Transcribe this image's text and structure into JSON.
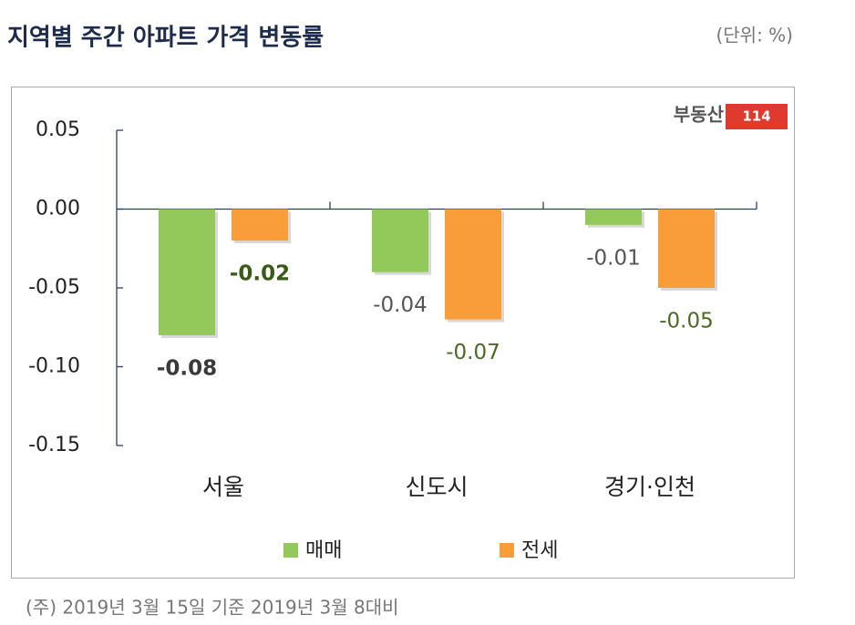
{
  "chart_data": {
    "type": "bar",
    "title": "지역별 주간 아파트 가격 변동률",
    "unit": "(단위: %)",
    "note": "(주) 2019년 3월 15일 기준 2019년 3월 8대비",
    "brand": {
      "text": "부동산",
      "badge": "114"
    },
    "categories": [
      "서울",
      "신도시",
      "경기·인천"
    ],
    "series": [
      {
        "name": "매매",
        "color": "#92c95a",
        "values": [
          -0.08,
          -0.04,
          -0.01
        ]
      },
      {
        "name": "전세",
        "color": "#f99c3a",
        "values": [
          -0.02,
          -0.07,
          -0.05
        ]
      }
    ],
    "ylim": [
      -0.15,
      0.05
    ],
    "yticks": [
      -0.15,
      {
        "value": -0.1,
        "label": "-0.10"
      },
      -0.05,
      {
        "value": 0,
        "label": "0.00"
      },
      0.05
    ],
    "grid": false
  }
}
